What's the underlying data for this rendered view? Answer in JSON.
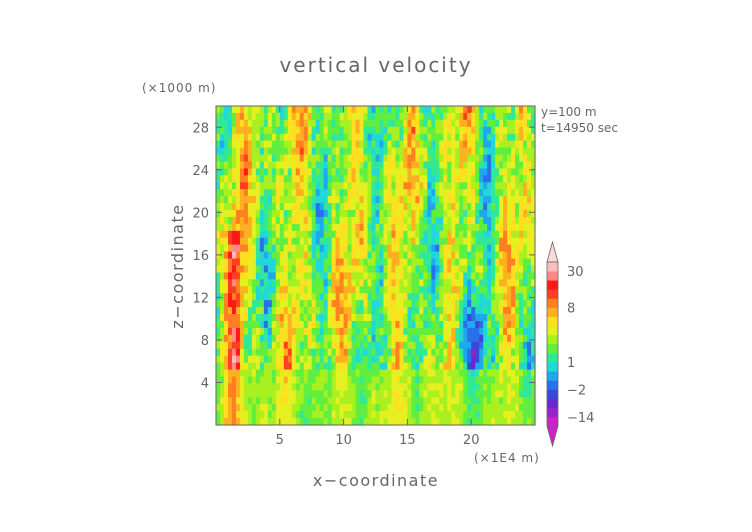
{
  "chart_data": {
    "type": "heatmap",
    "title": "vertical velocity",
    "xlabel": "x−coordinate",
    "ylabel": "z−coordinate",
    "x_unit": "(×1E4 m)",
    "y_unit": "(×1000 m)",
    "annotations": [
      "y=100 m",
      "t=14950 sec"
    ],
    "xlim": [
      0,
      25
    ],
    "ylim": [
      0,
      30
    ],
    "x_ticks": [
      5,
      10,
      15,
      20
    ],
    "y_ticks": [
      4,
      8,
      12,
      16,
      20,
      24,
      28
    ],
    "x_tick_labels": [
      "5",
      "10",
      "15",
      "20"
    ],
    "y_tick_labels": [
      "4",
      "8",
      "12",
      "16",
      "20",
      "24",
      "28"
    ],
    "colorbar": {
      "labels": [
        "30",
        "8",
        "1",
        "−2",
        "−14"
      ],
      "label_values": [
        30,
        8,
        1,
        -2,
        -14
      ],
      "levels": [
        -20,
        -14,
        -8,
        -5,
        -2,
        -1,
        0,
        1,
        2,
        3,
        4,
        5,
        6,
        8,
        10,
        15,
        20,
        30,
        40
      ],
      "colors": [
        "#cc22cc",
        "#9a22c8",
        "#6a28d0",
        "#3848d8",
        "#2a70e8",
        "#1fa8ec",
        "#20d8d8",
        "#30e898",
        "#60ee40",
        "#a8f020",
        "#e4f020",
        "#ffe020",
        "#ffb020",
        "#ff8020",
        "#ff4020",
        "#ff1818",
        "#ff8888",
        "#ffbcbc"
      ],
      "extend": "both"
    },
    "grid": false
  }
}
